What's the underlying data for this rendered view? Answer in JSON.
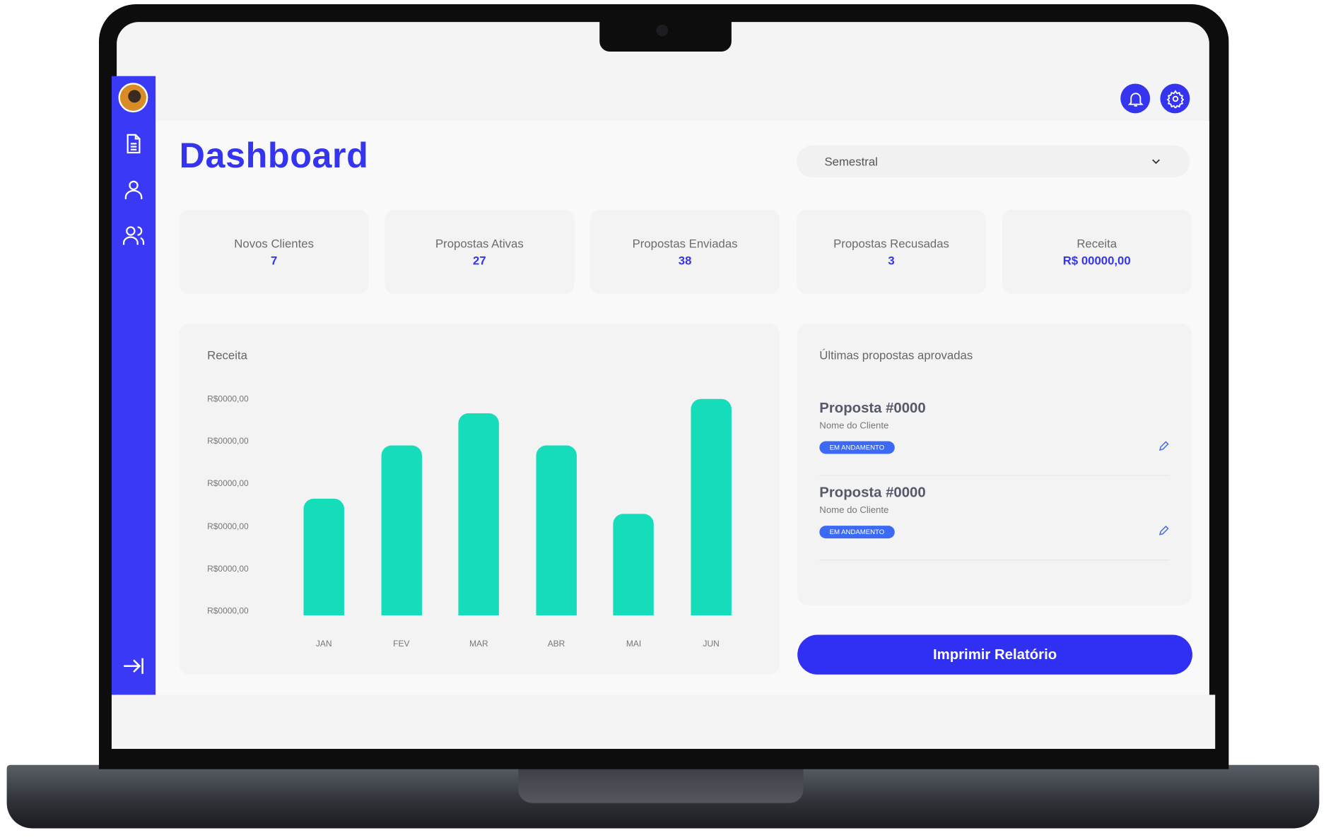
{
  "header": {
    "title": "Dashboard",
    "period_select": "Semestral"
  },
  "sidebar": {
    "items": [
      "avatar",
      "document-icon",
      "user-icon",
      "users-icon"
    ],
    "collapse": "arrow-right-bar-icon"
  },
  "stats": [
    {
      "label": "Novos Clientes",
      "value": "7"
    },
    {
      "label": "Propostas Ativas",
      "value": "27"
    },
    {
      "label": "Propostas Enviadas",
      "value": "38"
    },
    {
      "label": "Propostas Recusadas",
      "value": "3"
    },
    {
      "label": "Receita",
      "value": "R$ 00000,00"
    }
  ],
  "chart_data": {
    "type": "bar",
    "title": "Receita",
    "categories": [
      "JAN",
      "FEV",
      "MAR",
      "ABR",
      "MAI",
      "JUN"
    ],
    "y_tick_labels": [
      "R$0000,00",
      "R$0000,00",
      "R$0000,00",
      "R$0000,00",
      "R$0000,00",
      "R$0000,00"
    ],
    "values": [
      2.75,
      4.0,
      4.76,
      4.0,
      2.39,
      5.1
    ],
    "ylim": [
      0,
      5
    ],
    "grid": false,
    "color": "#15dcb9"
  },
  "proposals": {
    "title": "Últimas propostas aprovadas",
    "items": [
      {
        "title": "Proposta #0000",
        "client": "Nome do Cliente",
        "status": "EM ANDAMENTO"
      },
      {
        "title": "Proposta #0000",
        "client": "Nome do Cliente",
        "status": "EM ANDAMENTO"
      }
    ]
  },
  "print_button": "Imprimir Relatório",
  "colors": {
    "accent": "#3535f0",
    "bar": "#15dcb9",
    "badge": "#3d6af5"
  }
}
